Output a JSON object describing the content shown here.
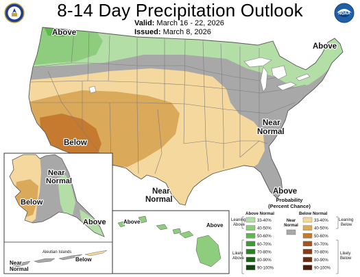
{
  "header": {
    "title": "8-14 Day Precipitation Outlook",
    "valid_label": "Valid:",
    "valid_dates": "March 16 - 22, 2026",
    "issued_label": "Issued:",
    "issued_date": "March 8, 2026"
  },
  "seals": {
    "left": "Department of Commerce seal",
    "right_text": "NOAA"
  },
  "map_labels": {
    "above_northwest": "Above",
    "above_northeast": "Above",
    "near_normal_southeast_1": "Near",
    "near_normal_southeast_2": "Normal",
    "below_southwest": "Below",
    "near_normal_south_1": "Near",
    "near_normal_south_2": "Normal",
    "above_florida": "Above",
    "alaska_near_1": "Near",
    "alaska_near_2": "Normal",
    "alaska_below": "Below",
    "alaska_above": "Above",
    "aleutian_islands": "Aleutian Islands",
    "aleutian_near_1": "Near",
    "aleutian_near_2": "Normal",
    "aleutian_below": "Below",
    "hawaii_above_1": "Above",
    "hawaii_above_2": "Above"
  },
  "legend": {
    "title_1": "Probability",
    "title_2": "(Percent Chance)",
    "above_header": "Above Normal",
    "below_header": "Below Normal",
    "leaning_above_1": "Leaning",
    "leaning_above_2": "Above",
    "likely_above_1": "Likely",
    "likely_above_2": "Above",
    "near_normal_1": "Near",
    "near_normal_2": "Normal",
    "leaning_below_1": "Leaning",
    "leaning_below_2": "Below",
    "likely_below_1": "Likely",
    "likely_below_2": "Below",
    "above_bins": [
      {
        "label": "33-40%",
        "color": "#b3dea6"
      },
      {
        "label": "40-50%",
        "color": "#8dcd7d"
      },
      {
        "label": "50-60%",
        "color": "#5fb84f"
      },
      {
        "label": "60-70%",
        "color": "#3d9b33"
      },
      {
        "label": "70-80%",
        "color": "#2a7f26"
      },
      {
        "label": "80-90%",
        "color": "#1d6219"
      },
      {
        "label": "90-100%",
        "color": "#10450f"
      }
    ],
    "below_bins": [
      {
        "label": "33-40%",
        "color": "#f5d89e"
      },
      {
        "label": "40-50%",
        "color": "#dba95a"
      },
      {
        "label": "50-60%",
        "color": "#c67a2f"
      },
      {
        "label": "60-70%",
        "color": "#a85223"
      },
      {
        "label": "70-80%",
        "color": "#883a1a"
      },
      {
        "label": "80-90%",
        "color": "#6a2c13"
      },
      {
        "label": "90-100%",
        "color": "#4b1e0c"
      }
    ],
    "near_color": "#a8a8a8"
  },
  "colors": {
    "above_33_40": "#b3dea6",
    "above_40_50": "#8dcd7d",
    "above_50_60": "#5fb84f",
    "near_normal": "#a8a8a8",
    "below_33_40": "#f5d89e",
    "below_40_50": "#dba95a",
    "below_50_60": "#c67a2f",
    "below_60_70": "#a85223",
    "water": "#ffffff",
    "borders": "#888888"
  }
}
